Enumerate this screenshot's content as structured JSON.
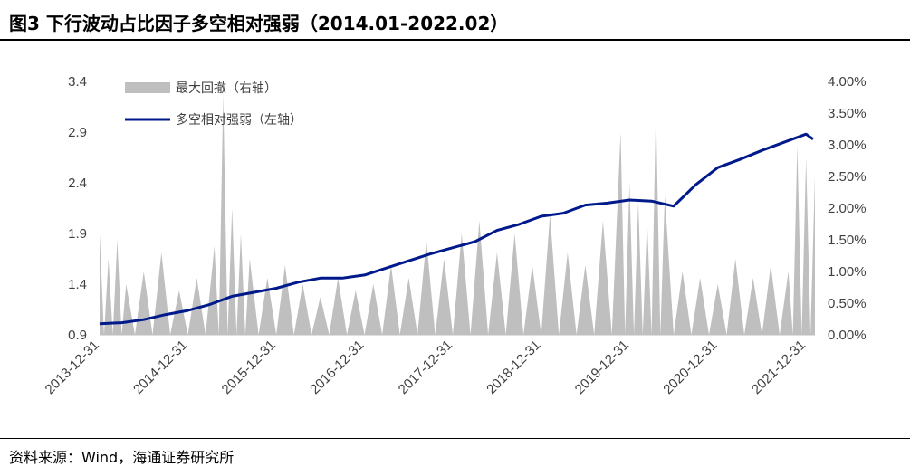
{
  "header": {
    "title": "图3   下行波动占比因子多空相对强弱（2014.01-2022.02）"
  },
  "footer": {
    "source": "资料来源：Wind，海通证券研究所"
  },
  "colors": {
    "line": "#001a8c",
    "area": "#bfbfbf",
    "axis_text": "#404040"
  },
  "chart_data": {
    "type": "line",
    "title": "",
    "x_tick_labels": [
      "2013-12-31",
      "2014-12-31",
      "2015-12-31",
      "2016-12-31",
      "2017-12-31",
      "2018-12-31",
      "2019-12-31",
      "2020-12-31",
      "2021-12-31"
    ],
    "y_left": {
      "lim": [
        0.9,
        3.4
      ],
      "ticks": [
        "0.9",
        "1.4",
        "1.9",
        "2.4",
        "2.9",
        "3.4"
      ]
    },
    "y_right": {
      "lim": [
        0,
        4
      ],
      "ticks": [
        "0.00%",
        "0.50%",
        "1.00%",
        "1.50%",
        "2.00%",
        "2.50%",
        "3.00%",
        "3.50%",
        "4.00%"
      ]
    },
    "grid": false,
    "legend_position": "top-left",
    "series": [
      {
        "name": "最大回撤（右轴）",
        "kind": "area",
        "axis": "right",
        "x": [
          2014.0,
          2014.1,
          2014.2,
          2014.3,
          2014.5,
          2014.7,
          2014.9,
          2015.1,
          2015.3,
          2015.4,
          2015.5,
          2015.6,
          2015.7,
          2015.9,
          2016.1,
          2016.3,
          2016.5,
          2016.7,
          2016.9,
          2017.1,
          2017.3,
          2017.5,
          2017.7,
          2017.9,
          2018.1,
          2018.3,
          2018.5,
          2018.7,
          2018.9,
          2019.1,
          2019.3,
          2019.5,
          2019.7,
          2019.9,
          2020.0,
          2020.1,
          2020.2,
          2020.3,
          2020.4,
          2020.6,
          2020.8,
          2021.0,
          2021.2,
          2021.4,
          2021.6,
          2021.8,
          2021.9,
          2022.0,
          2022.1
        ],
        "values": [
          1.6,
          1.2,
          1.5,
          0.8,
          1.0,
          1.3,
          0.7,
          0.9,
          1.4,
          3.8,
          2.0,
          1.6,
          1.2,
          0.9,
          1.1,
          0.8,
          0.6,
          0.9,
          0.7,
          0.8,
          1.1,
          0.9,
          1.5,
          1.2,
          1.6,
          1.8,
          1.3,
          1.6,
          1.1,
          1.9,
          1.3,
          1.1,
          1.8,
          3.2,
          2.4,
          2.1,
          1.8,
          3.6,
          2.2,
          1.0,
          0.9,
          0.8,
          1.2,
          0.9,
          1.1,
          1.0,
          3.0,
          2.8,
          2.5
        ]
      },
      {
        "name": "多空相对强弱（左轴）",
        "kind": "line",
        "axis": "left",
        "x": [
          2014.0,
          2014.25,
          2014.5,
          2014.75,
          2015.0,
          2015.25,
          2015.5,
          2015.75,
          2016.0,
          2016.25,
          2016.5,
          2016.75,
          2017.0,
          2017.25,
          2017.5,
          2017.75,
          2018.0,
          2018.25,
          2018.5,
          2018.75,
          2019.0,
          2019.25,
          2019.5,
          2019.75,
          2020.0,
          2020.25,
          2020.5,
          2020.75,
          2021.0,
          2021.25,
          2021.5,
          2021.75,
          2022.0,
          2022.08
        ],
        "values": [
          1.01,
          1.02,
          1.05,
          1.1,
          1.14,
          1.2,
          1.28,
          1.32,
          1.36,
          1.42,
          1.46,
          1.46,
          1.49,
          1.56,
          1.63,
          1.7,
          1.76,
          1.82,
          1.93,
          1.99,
          2.07,
          2.1,
          2.18,
          2.2,
          2.23,
          2.22,
          2.17,
          2.38,
          2.55,
          2.63,
          2.72,
          2.8,
          2.88,
          2.83
        ]
      }
    ]
  }
}
